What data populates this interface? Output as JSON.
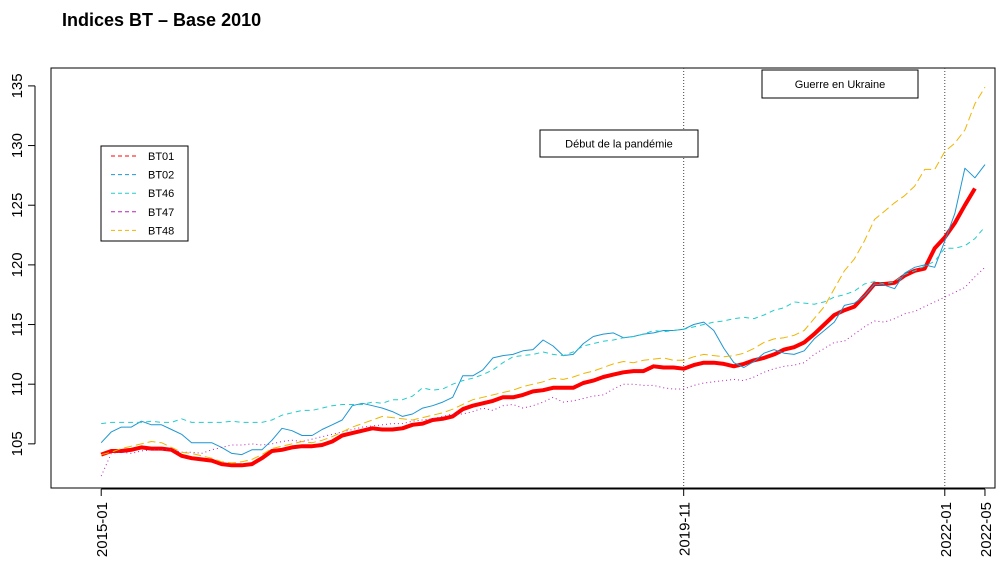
{
  "chart_data": {
    "type": "line",
    "title": "Indices BT – Base 2010",
    "x": [
      "2015-01",
      "2015-02",
      "2015-03",
      "2015-04",
      "2015-05",
      "2015-06",
      "2015-07",
      "2015-08",
      "2015-09",
      "2015-10",
      "2015-11",
      "2015-12",
      "2016-01",
      "2016-02",
      "2016-03",
      "2016-04",
      "2016-05",
      "2016-06",
      "2016-07",
      "2016-08",
      "2016-09",
      "2016-10",
      "2016-11",
      "2016-12",
      "2017-01",
      "2017-02",
      "2017-03",
      "2017-04",
      "2017-05",
      "2017-06",
      "2017-07",
      "2017-08",
      "2017-09",
      "2017-10",
      "2017-11",
      "2017-12",
      "2018-01",
      "2018-02",
      "2018-03",
      "2018-04",
      "2018-05",
      "2018-06",
      "2018-07",
      "2018-08",
      "2018-09",
      "2018-10",
      "2018-11",
      "2018-12",
      "2019-01",
      "2019-02",
      "2019-03",
      "2019-04",
      "2019-05",
      "2019-06",
      "2019-07",
      "2019-08",
      "2019-09",
      "2019-10",
      "2019-11",
      "2019-12",
      "2020-01",
      "2020-02",
      "2020-03",
      "2020-04",
      "2020-05",
      "2020-06",
      "2020-07",
      "2020-08",
      "2020-09",
      "2020-10",
      "2020-11",
      "2020-12",
      "2021-01",
      "2021-02",
      "2021-03",
      "2021-04",
      "2021-05",
      "2021-06",
      "2021-07",
      "2021-08",
      "2021-09",
      "2021-10",
      "2021-11",
      "2021-12",
      "2022-01",
      "2022-02",
      "2022-03",
      "2022-04",
      "2022-05"
    ],
    "series": [
      {
        "name": "BT01",
        "color": "#ff0000",
        "dash": "solid",
        "width": 4,
        "values": [
          104.1,
          104.4,
          104.4,
          104.5,
          104.7,
          104.6,
          104.6,
          104.5,
          104.0,
          103.8,
          103.7,
          103.6,
          103.3,
          103.2,
          103.2,
          103.3,
          103.8,
          104.4,
          104.5,
          104.7,
          104.8,
          104.8,
          104.9,
          105.2,
          105.7,
          105.9,
          106.1,
          106.3,
          106.2,
          106.2,
          106.3,
          106.6,
          106.7,
          107.0,
          107.1,
          107.3,
          107.9,
          108.2,
          108.4,
          108.6,
          108.9,
          108.9,
          109.1,
          109.4,
          109.5,
          109.7,
          109.7,
          109.7,
          110.1,
          110.3,
          110.6,
          110.8,
          111.0,
          111.1,
          111.1,
          111.5,
          111.4,
          111.4,
          111.3,
          111.6,
          111.8,
          111.8,
          111.7,
          111.5,
          111.7,
          112.0,
          112.2,
          112.5,
          112.9,
          113.1,
          113.5,
          114.2,
          115.0,
          115.8,
          116.2,
          116.5,
          117.4,
          118.4,
          118.4,
          118.5,
          119.1,
          119.5,
          119.7,
          121.4,
          122.3,
          123.5,
          125.0,
          126.4,
          null
        ]
      },
      {
        "name": "BT02",
        "color": "#1e96d2",
        "dash": "solid",
        "width": 1,
        "values": [
          105.1,
          106.0,
          106.4,
          106.4,
          106.9,
          106.6,
          106.6,
          106.2,
          105.8,
          105.1,
          105.1,
          105.1,
          104.7,
          104.2,
          104.1,
          104.5,
          104.5,
          105.3,
          106.3,
          106.1,
          105.7,
          105.7,
          106.2,
          106.6,
          107.0,
          108.2,
          108.4,
          108.2,
          108.0,
          107.7,
          107.3,
          107.5,
          108.0,
          108.2,
          108.5,
          108.9,
          110.7,
          110.7,
          111.2,
          112.2,
          112.4,
          112.5,
          112.8,
          112.9,
          113.7,
          113.2,
          112.4,
          112.5,
          113.4,
          114.0,
          114.2,
          114.3,
          113.9,
          114.0,
          114.2,
          114.3,
          114.5,
          114.5,
          114.6,
          115.0,
          115.2,
          114.5,
          113.0,
          111.8,
          111.4,
          111.9,
          112.6,
          112.9,
          112.6,
          112.5,
          112.8,
          113.8,
          114.5,
          115.2,
          116.6,
          116.8,
          117.4,
          118.4,
          118.3,
          118.0,
          119.3,
          119.8,
          120.0,
          119.8,
          122.0,
          124.3,
          128.1,
          127.3,
          128.4
        ]
      },
      {
        "name": "BT46",
        "color": "#22cccc",
        "dash": "dashed",
        "width": 1,
        "values": [
          106.7,
          106.8,
          106.8,
          106.8,
          106.8,
          106.9,
          106.8,
          106.8,
          107.1,
          106.8,
          106.8,
          106.8,
          106.8,
          106.9,
          106.8,
          106.8,
          106.8,
          107.0,
          107.4,
          107.6,
          107.8,
          107.8,
          108.0,
          108.2,
          108.3,
          108.3,
          108.3,
          108.5,
          108.4,
          108.7,
          108.7,
          109.0,
          109.7,
          109.5,
          109.6,
          110.0,
          110.3,
          110.5,
          110.8,
          111.2,
          111.8,
          112.3,
          112.4,
          112.5,
          112.7,
          112.5,
          112.4,
          112.7,
          113.2,
          113.4,
          113.6,
          113.7,
          113.9,
          114.0,
          114.2,
          114.5,
          114.4,
          114.5,
          114.6,
          114.8,
          115.0,
          115.2,
          115.3,
          115.5,
          115.6,
          115.5,
          115.8,
          116.2,
          116.4,
          116.9,
          116.8,
          116.7,
          116.9,
          117.3,
          117.5,
          117.8,
          118.4,
          118.6,
          118.4,
          118.6,
          119.2,
          119.5,
          119.9,
          120.3,
          121.4,
          121.4,
          121.6,
          122.2,
          123.2
        ]
      },
      {
        "name": "BT47",
        "color": "#b522b5",
        "dash": "dotted",
        "width": 1,
        "values": [
          102.3,
          104.2,
          104.3,
          104.2,
          104.4,
          104.5,
          104.5,
          104.5,
          104.3,
          104.3,
          104.2,
          104.5,
          104.7,
          104.9,
          104.9,
          105.0,
          104.9,
          105.0,
          105.2,
          105.3,
          105.2,
          105.4,
          105.6,
          105.8,
          106.0,
          106.2,
          106.4,
          106.5,
          106.6,
          106.7,
          106.7,
          106.9,
          107.0,
          107.1,
          107.3,
          107.5,
          107.5,
          107.7,
          108.0,
          107.8,
          108.2,
          108.3,
          108.0,
          108.2,
          108.5,
          108.9,
          108.5,
          108.6,
          108.8,
          109.0,
          109.1,
          109.6,
          110.0,
          110.0,
          109.9,
          109.9,
          109.7,
          109.6,
          109.6,
          109.9,
          110.1,
          110.2,
          110.3,
          110.4,
          110.3,
          110.6,
          111.0,
          111.3,
          111.5,
          111.6,
          111.8,
          112.5,
          113.0,
          113.5,
          113.6,
          114.2,
          114.8,
          115.3,
          115.2,
          115.5,
          115.9,
          116.1,
          116.5,
          116.9,
          117.3,
          117.7,
          118.1,
          119.0,
          119.8
        ]
      },
      {
        "name": "BT48",
        "color": "#f0b400",
        "dash": "longdash",
        "width": 1,
        "values": [
          104.1,
          104.3,
          104.6,
          104.8,
          105.0,
          105.2,
          105.1,
          104.7,
          104.3,
          104.2,
          104.0,
          103.8,
          103.5,
          103.4,
          103.5,
          103.7,
          104.1,
          104.6,
          104.8,
          105.0,
          105.2,
          105.1,
          105.3,
          105.6,
          106.0,
          106.4,
          106.7,
          107.0,
          107.3,
          107.2,
          107.1,
          107.0,
          107.2,
          107.4,
          107.6,
          107.9,
          108.3,
          108.7,
          108.9,
          109.1,
          109.3,
          109.5,
          109.8,
          110.0,
          110.2,
          110.5,
          110.4,
          110.6,
          110.9,
          111.1,
          111.4,
          111.7,
          111.9,
          111.8,
          112.0,
          112.1,
          112.2,
          112.0,
          112.0,
          112.3,
          112.5,
          112.4,
          112.3,
          112.4,
          112.6,
          113.0,
          113.5,
          113.8,
          113.9,
          114.1,
          114.5,
          115.5,
          116.5,
          118.0,
          119.5,
          120.5,
          122.0,
          123.8,
          124.5,
          125.2,
          125.8,
          126.6,
          128.0,
          128.0,
          129.5,
          130.2,
          131.3,
          133.5,
          134.9
        ]
      }
    ],
    "xlim": [
      "2014-08",
      "2022-06"
    ],
    "xticks": [
      "2015-01",
      "2019-11",
      "2022-01",
      "2022-05"
    ],
    "ylim": [
      101.3,
      136.5
    ],
    "yticks": [
      105,
      110,
      115,
      120,
      125,
      130,
      135
    ],
    "annotations": [
      {
        "x": "2019-11",
        "label": "Début de la pandémie"
      },
      {
        "x": "2022-01",
        "label": "Guerre en Ukraine"
      }
    ],
    "legend": "top-left"
  }
}
